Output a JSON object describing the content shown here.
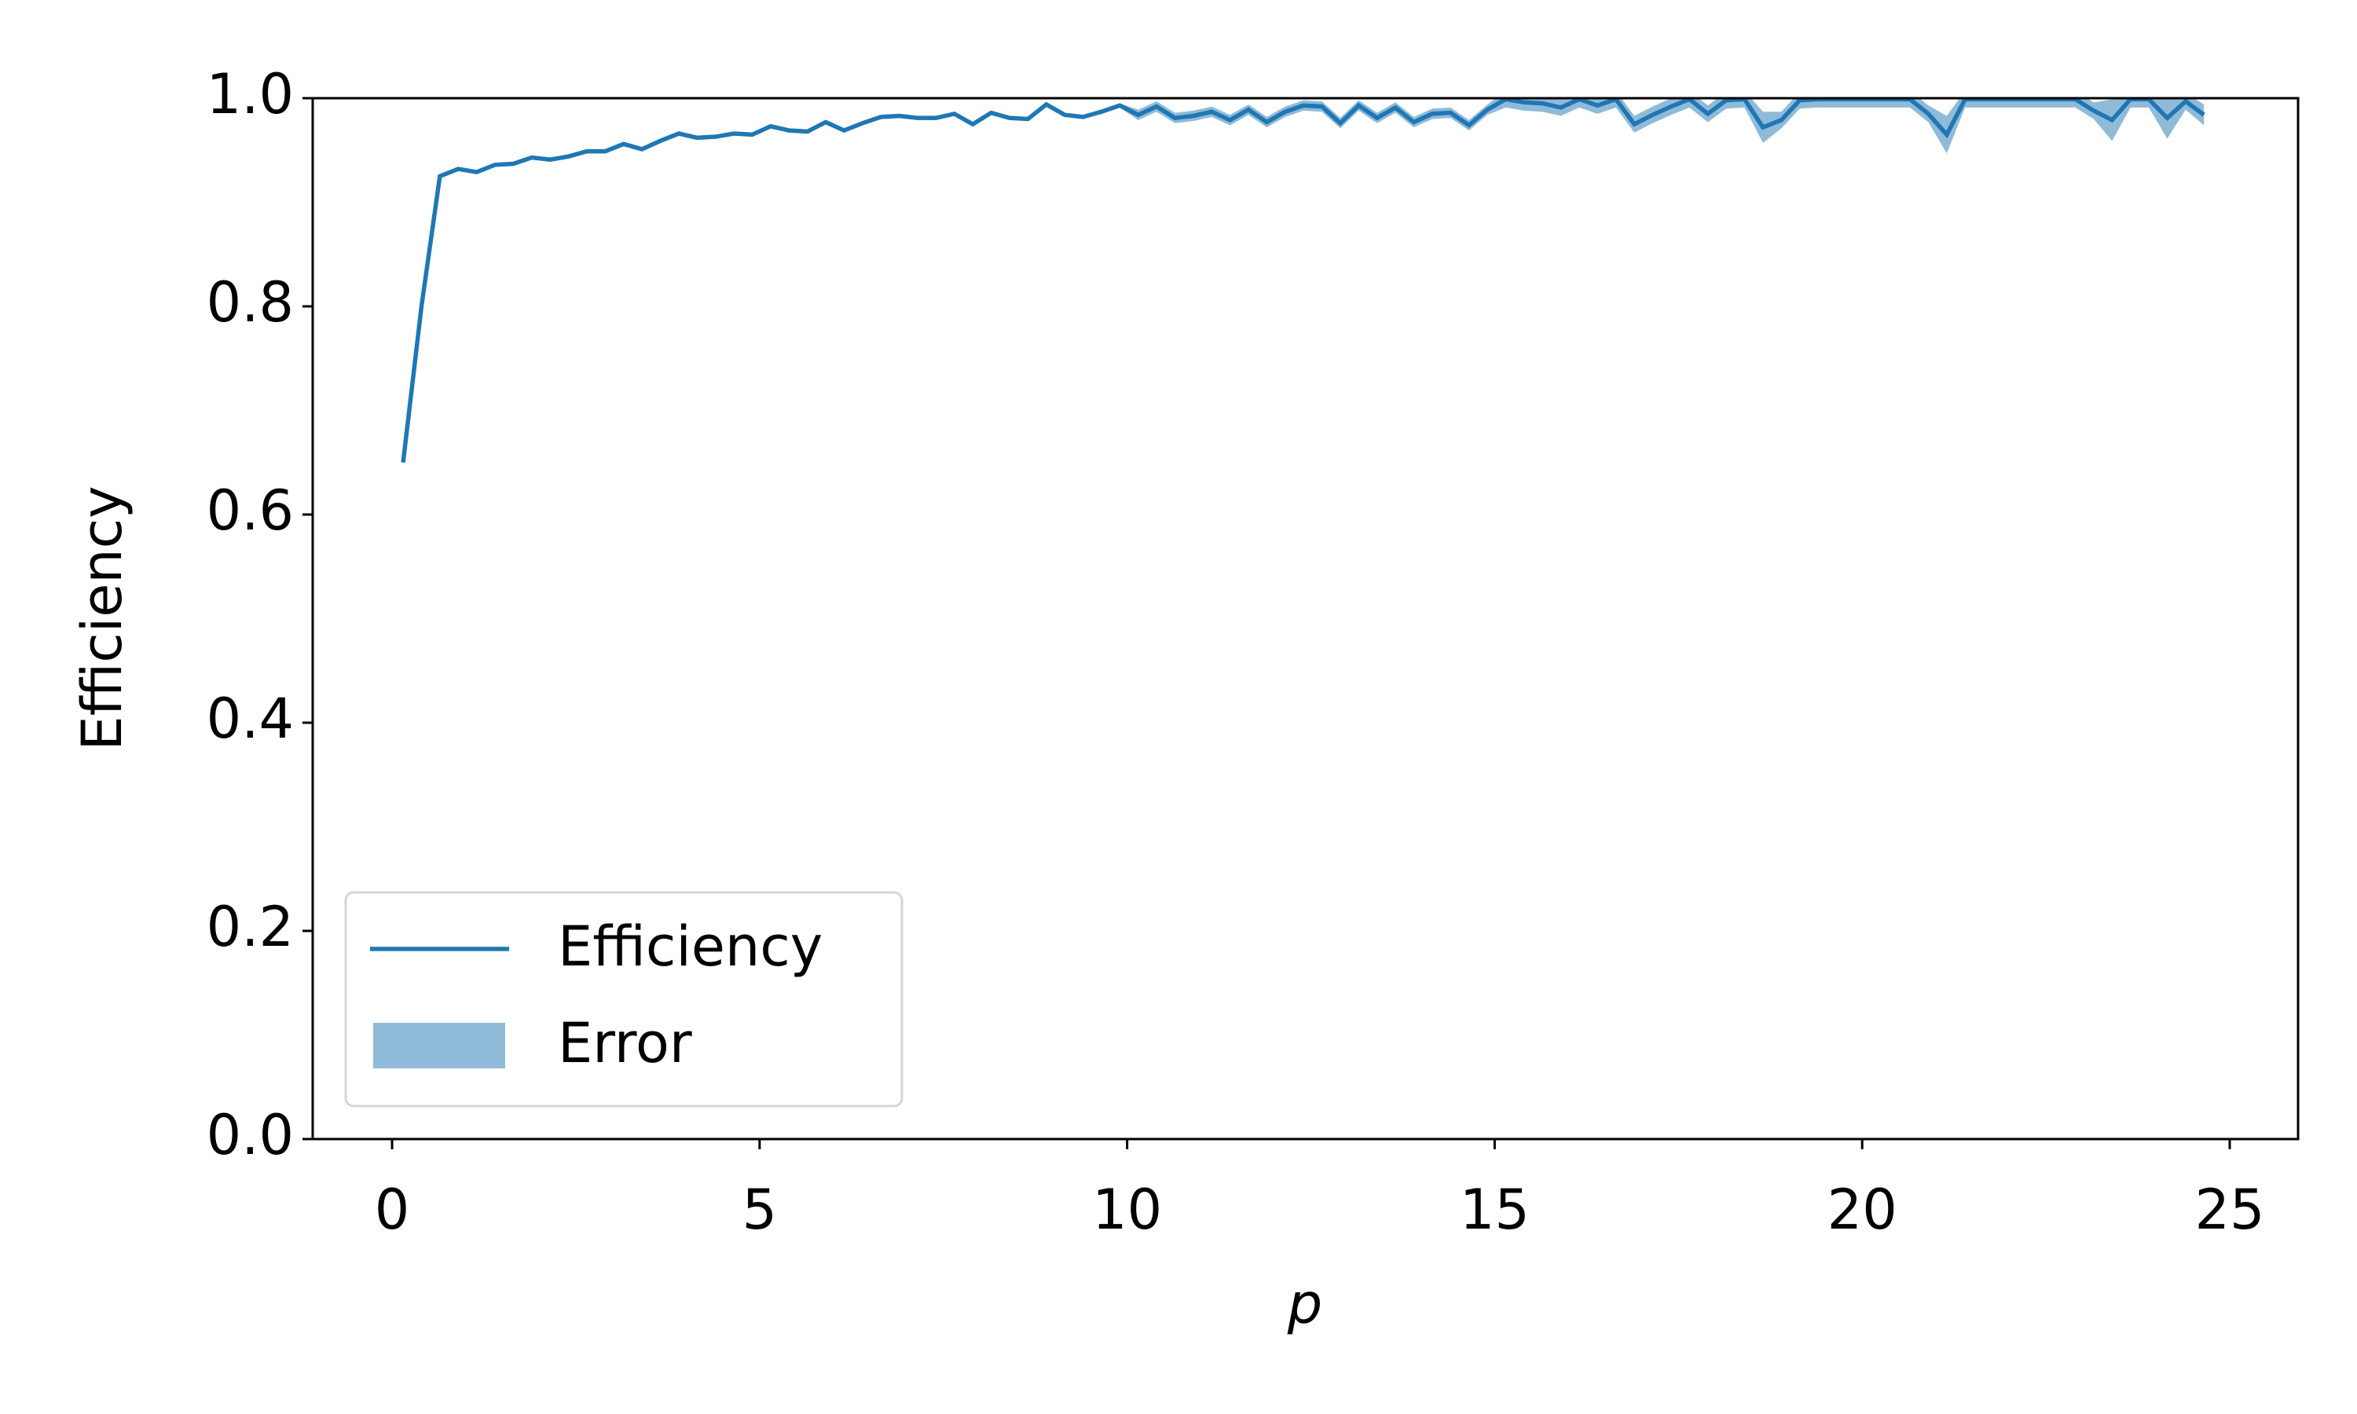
{
  "chart_data": {
    "type": "line",
    "xlabel": "p",
    "ylabel": "Efficiency",
    "x": [
      0.15,
      0.4,
      0.65,
      0.9,
      1.15,
      1.4,
      1.65,
      1.9,
      2.15,
      2.4,
      2.65,
      2.9,
      3.15,
      3.4,
      3.65,
      3.9,
      4.15,
      4.4,
      4.65,
      4.9,
      5.15,
      5.4,
      5.65,
      5.9,
      6.15,
      6.4,
      6.65,
      6.9,
      7.15,
      7.4,
      7.65,
      7.9,
      8.15,
      8.4,
      8.65,
      8.9,
      9.15,
      9.4,
      9.65,
      9.9,
      10.15,
      10.4,
      10.65,
      10.9,
      11.15,
      11.4,
      11.65,
      11.9,
      12.15,
      12.4,
      12.65,
      12.9,
      13.15,
      13.4,
      13.65,
      13.9,
      14.15,
      14.4,
      14.65,
      14.9,
      15.15,
      15.4,
      15.65,
      15.9,
      16.15,
      16.4,
      16.65,
      16.9,
      17.15,
      17.4,
      17.65,
      17.9,
      18.15,
      18.4,
      18.65,
      18.9,
      19.15,
      19.4,
      19.65,
      19.9,
      20.15,
      20.4,
      20.65,
      20.9,
      21.15,
      21.4,
      21.65,
      21.9,
      22.15,
      22.4,
      22.65,
      22.9,
      23.15,
      23.4,
      23.65,
      23.9,
      24.15,
      24.4,
      24.65
    ],
    "series": [
      {
        "name": "Efficiency",
        "color": "#1f77b4",
        "values": [
          0.65,
          0.8,
          0.925,
          0.932,
          0.929,
          0.936,
          0.937,
          0.943,
          0.941,
          0.944,
          0.949,
          0.949,
          0.956,
          0.951,
          0.959,
          0.966,
          0.962,
          0.963,
          0.966,
          0.965,
          0.973,
          0.969,
          0.968,
          0.977,
          0.969,
          0.976,
          0.982,
          0.983,
          0.981,
          0.981,
          0.985,
          0.975,
          0.986,
          0.981,
          0.98,
          0.994,
          0.984,
          0.982,
          0.987,
          0.993,
          0.984,
          0.992,
          0.981,
          0.983,
          0.987,
          0.979,
          0.989,
          0.977,
          0.987,
          0.993,
          0.992,
          0.976,
          0.993,
          0.981,
          0.991,
          0.977,
          0.985,
          0.986,
          0.974,
          0.989,
          0.999,
          0.996,
          0.995,
          0.991,
          0.999,
          0.993,
          0.999,
          0.975,
          0.984,
          0.992,
          0.999,
          0.985,
          0.998,
          0.999,
          0.972,
          0.979,
          0.998,
          0.999,
          0.999,
          0.999,
          0.999,
          0.999,
          0.999,
          0.985,
          0.965,
          0.999,
          0.999,
          0.999,
          0.999,
          0.999,
          0.999,
          0.999,
          0.988,
          0.979,
          0.999,
          0.999,
          0.981,
          0.997,
          0.984
        ]
      }
    ],
    "error": {
      "name": "Error",
      "color": "#1f77b4",
      "alpha": 0.5,
      "values": [
        0.002,
        0.002,
        0.002,
        0.002,
        0.002,
        0.002,
        0.002,
        0.002,
        0.002,
        0.002,
        0.002,
        0.002,
        0.002,
        0.002,
        0.002,
        0.002,
        0.002,
        0.002,
        0.002,
        0.002,
        0.002,
        0.002,
        0.002,
        0.002,
        0.002,
        0.002,
        0.002,
        0.002,
        0.002,
        0.002,
        0.002,
        0.002,
        0.002,
        0.002,
        0.002,
        0.002,
        0.002,
        0.002,
        0.002,
        0.002,
        0.005,
        0.005,
        0.005,
        0.005,
        0.005,
        0.005,
        0.005,
        0.005,
        0.005,
        0.005,
        0.005,
        0.005,
        0.005,
        0.005,
        0.005,
        0.005,
        0.005,
        0.005,
        0.005,
        0.005,
        0.008,
        0.008,
        0.008,
        0.008,
        0.008,
        0.008,
        0.008,
        0.008,
        0.008,
        0.008,
        0.008,
        0.008,
        0.008,
        0.008,
        0.015,
        0.008,
        0.008,
        0.008,
        0.008,
        0.008,
        0.008,
        0.008,
        0.008,
        0.008,
        0.018,
        0.008,
        0.008,
        0.008,
        0.008,
        0.008,
        0.008,
        0.008,
        0.008,
        0.02,
        0.008,
        0.008,
        0.02,
        0.008,
        0.01
      ]
    },
    "xlim": [
      -1.08,
      25.93
    ],
    "ylim": [
      0,
      1
    ],
    "xticks": [
      0,
      5,
      10,
      15,
      20,
      25
    ],
    "yticks": [
      {
        "value": 0,
        "label": "0.0"
      },
      0.2,
      0.4,
      0.6,
      0.8,
      {
        "value": 1,
        "label": "1.0"
      }
    ],
    "legend": "lower left"
  }
}
